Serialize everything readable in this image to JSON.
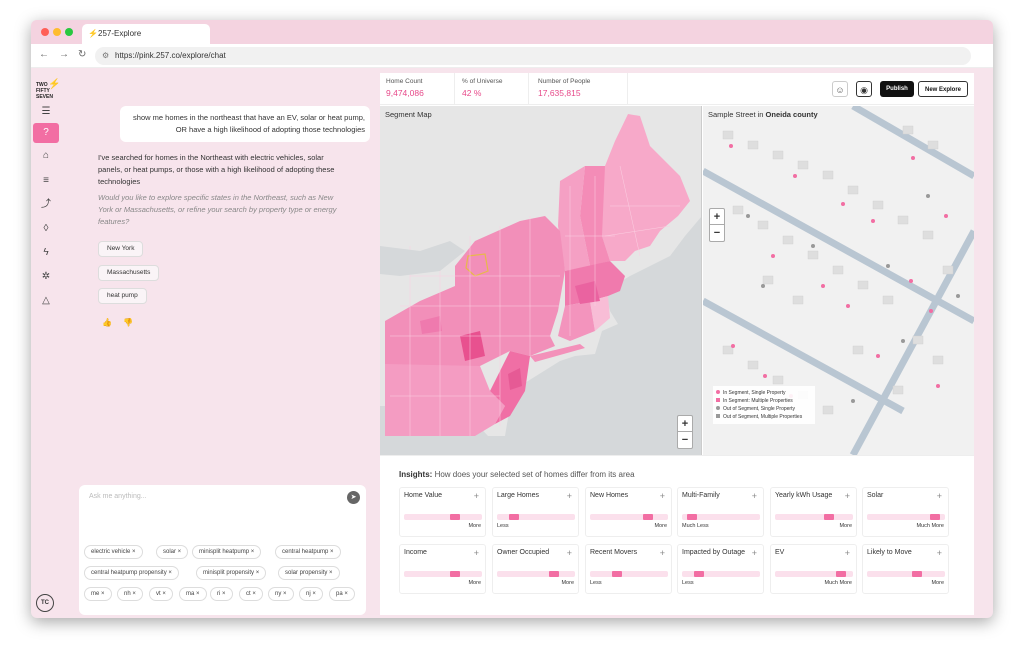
{
  "browser": {
    "tab_title": "257-Explore",
    "url": "https://pink.257.co/explore/chat"
  },
  "sidebar": {
    "logo_line1": "TWO",
    "logo_line2": "FIFTY",
    "logo_line3": "SEVEN",
    "avatar": "TC"
  },
  "chat": {
    "user_message": "show me homes in the northeast that have an EV, solar or heat pump, OR have a high likelihood of adopting those technologies",
    "assistant_message": "I've searched for homes in the Northeast with electric vehicles, solar panels, or heat pumps, or those with a high likelihood of adopting these technologies",
    "assistant_question": "Would you like to explore specific states in the Northeast, such as New York or Massachusetts, or refine your search by property type or energy features?",
    "suggestions": [
      "New York",
      "Massachusetts",
      "heat pump"
    ],
    "input_placeholder": "Ask me anything...",
    "tags": [
      "electric vehicle",
      "solar",
      "minisplit heatpump",
      "central heatpump",
      "central heatpump propensity",
      "minisplit propensity",
      "solar propensity",
      "me",
      "nh",
      "vt",
      "ma",
      "ri",
      "ct",
      "ny",
      "nj",
      "pa"
    ]
  },
  "stats": {
    "home_count_label": "Home Count",
    "home_count": "9,474,086",
    "universe_label": "% of Universe",
    "universe": "42 %",
    "people_label": "Number of People",
    "people": "17,635,815"
  },
  "toolbar": {
    "publish": "Publish",
    "new_explore": "New Explore"
  },
  "segment_map": {
    "title": "Segment Map"
  },
  "street": {
    "title_prefix": "Sample Street in ",
    "county": "Oneida county",
    "legend": [
      {
        "label": "In Segment, Single Property",
        "color": "#f26ea3"
      },
      {
        "label": "In Segment: Multiple Properties",
        "color": "#f26ea3"
      },
      {
        "label": "Out of Segment, Single Property",
        "color": "#999999"
      },
      {
        "label": "Out of Segment, Multiple Properties",
        "color": "#999999"
      }
    ]
  },
  "insights": {
    "title": "Insights:",
    "subtitle": "How does your selected set of homes differ from its area",
    "cards": [
      {
        "name": "Home Value",
        "direction": "More",
        "level": 0.68
      },
      {
        "name": "Large Homes",
        "direction": "Less",
        "level": 0.18
      },
      {
        "name": "New Homes",
        "direction": "More",
        "level": 0.78
      },
      {
        "name": "Multi-Family",
        "direction": "Much Less",
        "level": 0.08
      },
      {
        "name": "Yearly kWh Usage",
        "direction": "More",
        "level": 0.72
      },
      {
        "name": "Solar",
        "direction": "Much More",
        "level": 0.92
      },
      {
        "name": "Income",
        "direction": "More",
        "level": 0.68
      },
      {
        "name": "Owner Occupied",
        "direction": "More",
        "level": 0.76
      },
      {
        "name": "Recent Movers",
        "direction": "Less",
        "level": 0.32
      },
      {
        "name": "Impacted by Outage",
        "direction": "Less",
        "level": 0.18
      },
      {
        "name": "EV",
        "direction": "Much More",
        "level": 0.9
      },
      {
        "name": "Likely to Move",
        "direction": "More",
        "level": 0.66
      }
    ]
  },
  "colors": {
    "accent": "#e74a8a",
    "pink_fill": "#f26ea3"
  }
}
